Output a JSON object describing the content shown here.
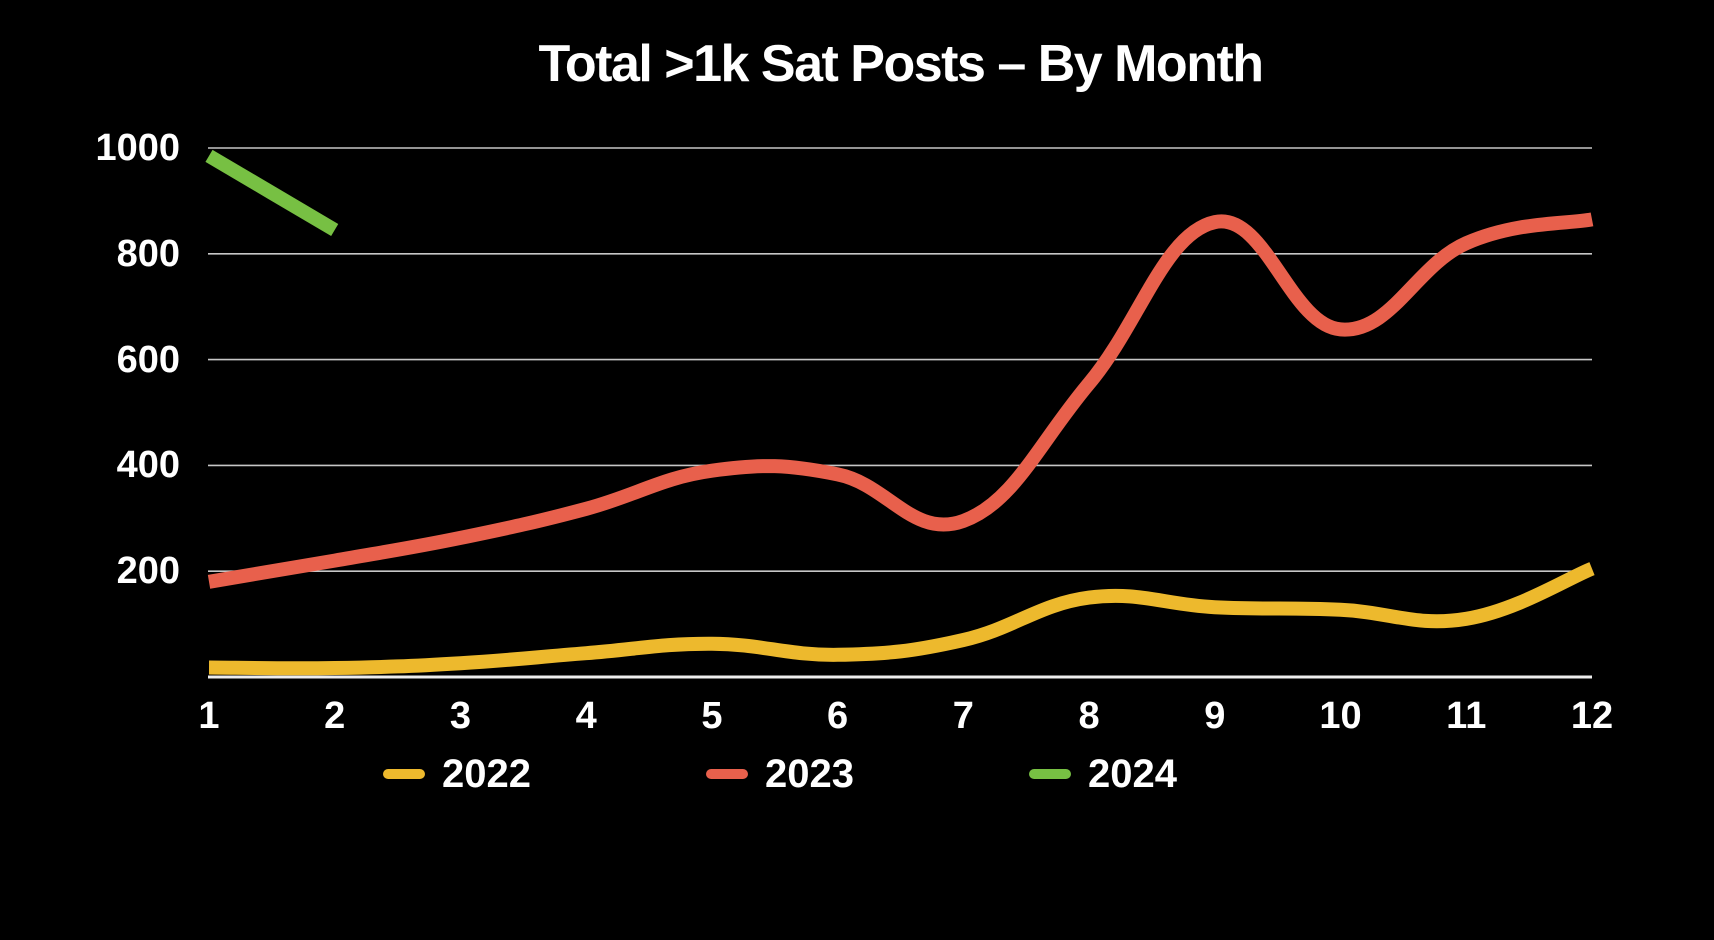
{
  "chart_data": {
    "type": "line",
    "title": "Total >1k Sat Posts – By Month",
    "xlabel": "",
    "ylabel": "",
    "categories": [
      "1",
      "2",
      "3",
      "4",
      "5",
      "6",
      "7",
      "8",
      "9",
      "10",
      "11",
      "12"
    ],
    "series": [
      {
        "name": "2022",
        "color": "#EDB92D",
        "values": [
          18,
          17,
          26,
          45,
          63,
          42,
          70,
          150,
          132,
          127,
          110,
          205
        ]
      },
      {
        "name": "2023",
        "color": "#E8604C",
        "values": [
          180,
          220,
          263,
          318,
          390,
          383,
          295,
          555,
          860,
          657,
          820,
          865
        ]
      },
      {
        "name": "2024",
        "color": "#77C043",
        "values": [
          985,
          845
        ]
      }
    ],
    "yticks": [
      1000,
      800,
      600,
      400,
      200
    ],
    "ylim": [
      0,
      1000
    ],
    "xlim": [
      1,
      12
    ],
    "grid": true,
    "legend_position": "bottom",
    "background_color": "#000000",
    "text_color": "#FFFFFF",
    "grid_color": "#C6C6C6",
    "baseline_color": "#EDEDED",
    "line_smoothing": "cubic"
  }
}
